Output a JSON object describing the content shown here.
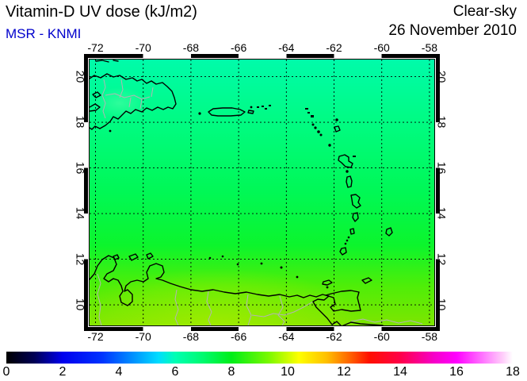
{
  "header": {
    "title": "Vitamin-D UV dose (kJ/m2)",
    "source": "MSR - KNMI",
    "source_color": "#0000cc",
    "condition": "Clear-sky",
    "date": "26 November 2010"
  },
  "map": {
    "lon_ticks": [
      -72,
      -70,
      -68,
      -66,
      -64,
      -62,
      -60,
      -58
    ],
    "lat_ticks": [
      20,
      18,
      16,
      14,
      12,
      10
    ],
    "lon_range": [
      -72.25,
      -57.75
    ],
    "lat_range": [
      9.1,
      20.75
    ],
    "grid_style": "dotted",
    "coastline_color": "#000000",
    "border_river_color": "#b4b4b4"
  },
  "colorbar": {
    "unit": "kJ/m2",
    "min": 0,
    "max": 18,
    "ticks": [
      0,
      2,
      4,
      6,
      8,
      10,
      12,
      14,
      16,
      18
    ],
    "stops": [
      {
        "v": 0,
        "c": "#000000"
      },
      {
        "v": 1,
        "c": "#000055"
      },
      {
        "v": 2,
        "c": "#0000ee"
      },
      {
        "v": 3.4,
        "c": "#0033ff"
      },
      {
        "v": 4.6,
        "c": "#0099ff"
      },
      {
        "v": 5.4,
        "c": "#00dcff"
      },
      {
        "v": 6,
        "c": "#00ffb4"
      },
      {
        "v": 7,
        "c": "#00fa6e"
      },
      {
        "v": 8,
        "c": "#00ee19"
      },
      {
        "v": 9.3,
        "c": "#78f800"
      },
      {
        "v": 10.4,
        "c": "#feff00"
      },
      {
        "v": 11.4,
        "c": "#ffbe00"
      },
      {
        "v": 12.2,
        "c": "#ff6400"
      },
      {
        "v": 12.9,
        "c": "#ff0f00"
      },
      {
        "v": 14,
        "c": "#ff0048"
      },
      {
        "v": 15.2,
        "c": "#f600c8"
      },
      {
        "v": 16,
        "c": "#ff00ff"
      },
      {
        "v": 17,
        "c": "#ff7dff"
      },
      {
        "v": 17.6,
        "c": "#ffc8fa"
      },
      {
        "v": 18,
        "c": "#ffffff"
      }
    ]
  },
  "chart_data": {
    "type": "heatmap",
    "title": "Vitamin-D UV dose (kJ/m2)",
    "source": "MSR - KNMI",
    "condition": "Clear-sky",
    "date": "26 November 2010",
    "region": "Caribbean Sea / Antilles / northern South America",
    "lon_range": [
      -72.25,
      -57.75
    ],
    "lat_range": [
      9.1,
      20.75
    ],
    "colorbar_range": [
      0,
      18
    ],
    "colorbar_ticks": [
      0,
      2,
      4,
      6,
      8,
      10,
      12,
      14,
      16,
      18
    ],
    "field_by_latitude": [
      {
        "lat": 20,
        "dose_kj_m2": 6.7
      },
      {
        "lat": 18,
        "dose_kj_m2": 7.0
      },
      {
        "lat": 16,
        "dose_kj_m2": 7.3
      },
      {
        "lat": 14,
        "dose_kj_m2": 7.6
      },
      {
        "lat": 12,
        "dose_kj_m2": 8.0
      },
      {
        "lat": 10,
        "dose_kj_m2": 8.7
      }
    ],
    "field_description": "Smooth zonally-uniform increase from spring-green (~6.7 kJ/m2) at 20N to yellow-green (~9 kJ/m2) at 9N"
  }
}
